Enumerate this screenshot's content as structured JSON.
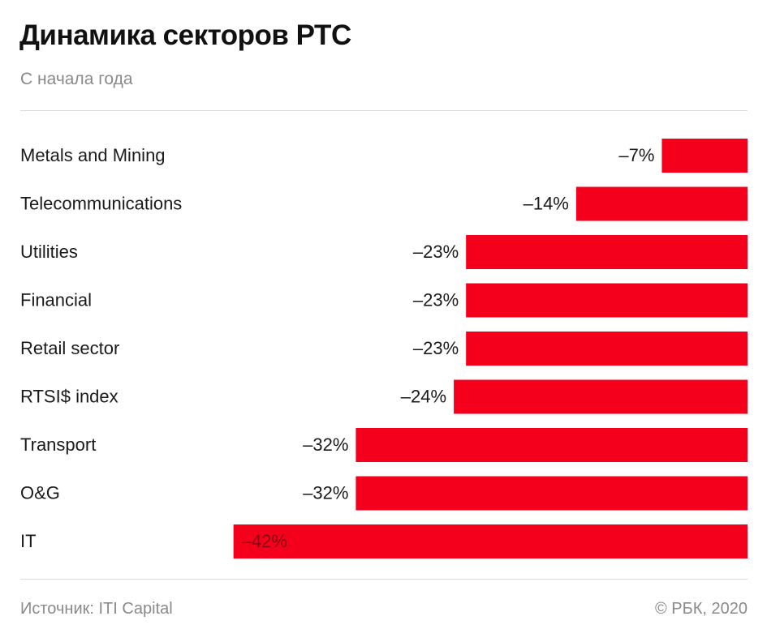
{
  "header": {
    "title": "Динамика секторов РТС",
    "subtitle": "С начала года"
  },
  "footer": {
    "source": "Источник: ITI Capital",
    "copyright": "© РБК, 2020"
  },
  "colors": {
    "bar": "#f5001c",
    "text": "#1a1a1a",
    "muted": "#8a8a8a",
    "rule": "#d9d9d9"
  },
  "chart_data": {
    "type": "bar",
    "orientation": "horizontal",
    "categories": [
      "Metals and Mining",
      "Telecommunications",
      "Utilities",
      "Financial",
      "Retail sector",
      "RTSI$ index",
      "Transport",
      "O&G",
      "IT"
    ],
    "values": [
      -7,
      -14,
      -23,
      -23,
      -23,
      -24,
      -32,
      -32,
      -42
    ],
    "value_labels": [
      "–7%",
      "–14%",
      "–23%",
      "–23%",
      "–23%",
      "–24%",
      "–32%",
      "–32%",
      "–42%"
    ],
    "unit": "%",
    "title": "Динамика секторов РТС",
    "subtitle": "С начала года",
    "xlim": [
      -42,
      0
    ],
    "grid": false,
    "legend": "none"
  }
}
